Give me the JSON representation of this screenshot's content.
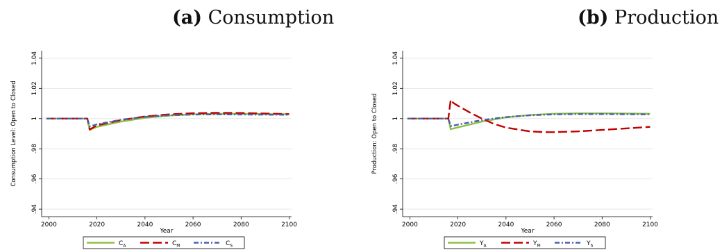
{
  "chart_data": [
    {
      "type": "line",
      "panel_label": "(a)",
      "title": "Consumption",
      "xlabel": "Year",
      "ylabel": "Consumption Level: Open to Closed",
      "xlim": [
        1997,
        2101
      ],
      "ylim": [
        0.935,
        1.045
      ],
      "x_ticks": [
        "2000",
        "2020",
        "2040",
        "2060",
        "2080",
        "2100"
      ],
      "y_ticks": [
        ".94",
        ".96",
        ".98",
        "1",
        "1.02",
        "1.04"
      ],
      "grid": true,
      "legend_position": "bottom",
      "series": [
        {
          "name": "C",
          "subscript": "A",
          "color": "#8dbf45",
          "dash": "solid",
          "x": [
            1999,
            2010,
            2016,
            2017,
            2020,
            2030,
            2040,
            2050,
            2060,
            2070,
            2080,
            2090,
            2100
          ],
          "y": [
            1.0,
            1.0,
            1.0,
            0.9925,
            0.9945,
            0.998,
            1.0005,
            1.002,
            1.0028,
            1.0031,
            1.0031,
            1.003,
            1.0029
          ]
        },
        {
          "name": "C",
          "subscript": "M",
          "color": "#c00000",
          "dash": "dashed",
          "x": [
            1999,
            2010,
            2016,
            2017,
            2020,
            2030,
            2040,
            2050,
            2060,
            2070,
            2080,
            2090,
            2100
          ],
          "y": [
            1.0,
            1.0,
            1.0,
            0.9928,
            0.9955,
            0.999,
            1.0014,
            1.0028,
            1.0036,
            1.0038,
            1.0037,
            1.0034,
            1.003
          ]
        },
        {
          "name": "C",
          "subscript": "S",
          "color": "#4a5fa8",
          "dash": "dashdot",
          "x": [
            1999,
            2010,
            2016,
            2017,
            2020,
            2030,
            2040,
            2050,
            2060,
            2070,
            2080,
            2090,
            2100
          ],
          "y": [
            1.0,
            1.0,
            1.0,
            0.9948,
            0.9962,
            0.9992,
            1.0012,
            1.0022,
            1.0027,
            1.0028,
            1.0027,
            1.0026,
            1.0025
          ]
        }
      ]
    },
    {
      "type": "line",
      "panel_label": "(b)",
      "title": "Production",
      "xlabel": "Year",
      "ylabel": "Production: Open to Closed",
      "xlim": [
        1997,
        2101
      ],
      "ylim": [
        0.935,
        1.045
      ],
      "x_ticks": [
        "2000",
        "2020",
        "2040",
        "2060",
        "2080",
        "2100"
      ],
      "y_ticks": [
        ".94",
        ".96",
        ".98",
        "1",
        "1.02",
        "1.04"
      ],
      "grid": true,
      "legend_position": "bottom",
      "series": [
        {
          "name": "Y",
          "subscript": "A",
          "color": "#8dbf45",
          "dash": "solid",
          "x": [
            1999,
            2010,
            2016,
            2017,
            2020,
            2030,
            2040,
            2050,
            2060,
            2070,
            2080,
            2090,
            2100
          ],
          "y": [
            1.0,
            1.0,
            1.0,
            0.993,
            0.9942,
            0.998,
            1.0008,
            1.0024,
            1.0032,
            1.0035,
            1.0035,
            1.0034,
            1.0032
          ]
        },
        {
          "name": "Y",
          "subscript": "M",
          "color": "#c00000",
          "dash": "dashed",
          "x": [
            1999,
            2010,
            2016,
            2017,
            2018,
            2020,
            2025,
            2030,
            2035,
            2040,
            2050,
            2056,
            2060,
            2070,
            2080,
            2090,
            2100
          ],
          "y": [
            1.0,
            1.0,
            1.0,
            1.0125,
            1.0105,
            1.0085,
            1.004,
            1.0,
            0.9965,
            0.994,
            0.9915,
            0.991,
            0.991,
            0.9915,
            0.9925,
            0.9935,
            0.9945
          ]
        },
        {
          "name": "Y",
          "subscript": "S",
          "color": "#4a5fa8",
          "dash": "dashdot",
          "x": [
            1999,
            2010,
            2016,
            2017,
            2020,
            2030,
            2040,
            2050,
            2060,
            2070,
            2080,
            2090,
            2100
          ],
          "y": [
            1.0,
            1.0,
            1.0,
            0.995,
            0.996,
            0.999,
            1.001,
            1.0022,
            1.0028,
            1.003,
            1.003,
            1.0029,
            1.0028
          ]
        }
      ]
    }
  ]
}
